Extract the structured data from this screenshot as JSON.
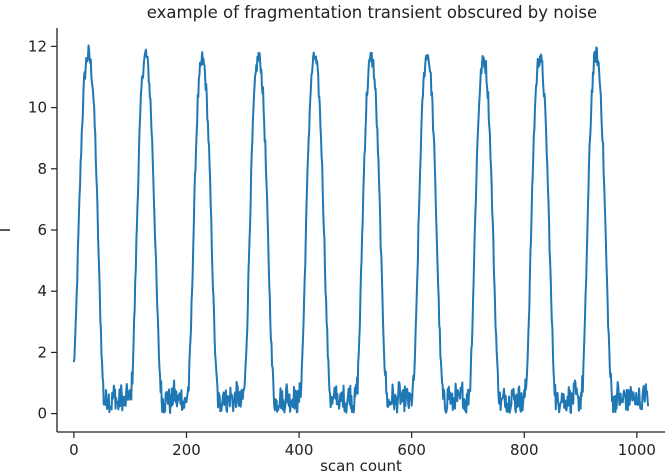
{
  "chart_data": {
    "type": "line",
    "title": "example of fragmentation transient obscured by noise",
    "xlabel": "scan count",
    "ylabel": "I",
    "xlim": [
      -30,
      1050
    ],
    "ylim": [
      -0.6,
      12.6
    ],
    "xticks": [
      0,
      200,
      400,
      600,
      800,
      1000
    ],
    "yticks": [
      0,
      2,
      4,
      6,
      8,
      10,
      12
    ],
    "grid": false,
    "legend": "none",
    "series": [
      {
        "color": "#1f77b4",
        "noise_amplitude": 0.45,
        "points": [
          [
            0,
            1.6
          ],
          [
            3,
            2.6
          ],
          [
            6,
            4.5
          ],
          [
            10,
            7.0
          ],
          [
            14,
            9.2
          ],
          [
            18,
            10.8
          ],
          [
            22,
            11.5
          ],
          [
            26,
            11.8
          ],
          [
            30,
            11.4
          ],
          [
            34,
            10.6
          ],
          [
            38,
            9.0
          ],
          [
            42,
            6.5
          ],
          [
            46,
            3.8
          ],
          [
            50,
            1.6
          ],
          [
            53,
            0.5
          ],
          [
            56,
            0.35
          ],
          [
            60,
            0.6
          ],
          [
            66,
            0.3
          ],
          [
            72,
            0.7
          ],
          [
            78,
            0.25
          ],
          [
            84,
            0.6
          ],
          [
            90,
            0.3
          ],
          [
            96,
            0.7
          ],
          [
            100,
            0.4
          ],
          [
            104,
            1.2
          ],
          [
            108,
            3.5
          ],
          [
            112,
            6.2
          ],
          [
            116,
            8.8
          ],
          [
            120,
            10.6
          ],
          [
            124,
            11.5
          ],
          [
            128,
            11.8
          ],
          [
            132,
            11.3
          ],
          [
            136,
            10.2
          ],
          [
            140,
            8.4
          ],
          [
            144,
            6.0
          ],
          [
            148,
            3.5
          ],
          [
            152,
            1.5
          ],
          [
            156,
            0.5
          ],
          [
            160,
            0.3
          ],
          [
            166,
            0.6
          ],
          [
            172,
            0.3
          ],
          [
            178,
            0.7
          ],
          [
            184,
            0.35
          ],
          [
            190,
            0.6
          ],
          [
            196,
            0.3
          ],
          [
            200,
            0.5
          ],
          [
            204,
            0.9
          ],
          [
            208,
            2.8
          ],
          [
            212,
            5.5
          ],
          [
            216,
            8.2
          ],
          [
            220,
            10.2
          ],
          [
            224,
            11.2
          ],
          [
            228,
            11.6
          ],
          [
            232,
            11.3
          ],
          [
            236,
            10.3
          ],
          [
            240,
            8.6
          ],
          [
            244,
            6.2
          ],
          [
            248,
            3.6
          ],
          [
            252,
            1.5
          ],
          [
            256,
            0.45
          ],
          [
            260,
            0.3
          ],
          [
            266,
            0.7
          ],
          [
            272,
            0.3
          ],
          [
            278,
            0.6
          ],
          [
            284,
            0.35
          ],
          [
            290,
            0.7
          ],
          [
            296,
            0.3
          ],
          [
            300,
            0.5
          ],
          [
            304,
            1.0
          ],
          [
            308,
            3.0
          ],
          [
            312,
            5.8
          ],
          [
            316,
            8.4
          ],
          [
            320,
            10.3
          ],
          [
            324,
            11.3
          ],
          [
            328,
            11.7
          ],
          [
            332,
            11.4
          ],
          [
            336,
            10.4
          ],
          [
            340,
            8.7
          ],
          [
            344,
            6.3
          ],
          [
            348,
            3.7
          ],
          [
            352,
            1.6
          ],
          [
            356,
            0.5
          ],
          [
            360,
            0.3
          ],
          [
            366,
            0.6
          ],
          [
            372,
            0.3
          ],
          [
            378,
            0.7
          ],
          [
            384,
            0.35
          ],
          [
            390,
            0.6
          ],
          [
            396,
            0.3
          ],
          [
            400,
            0.5
          ],
          [
            404,
            1.0
          ],
          [
            408,
            3.0
          ],
          [
            412,
            5.8
          ],
          [
            416,
            8.5
          ],
          [
            420,
            10.4
          ],
          [
            424,
            11.4
          ],
          [
            428,
            11.7
          ],
          [
            432,
            11.3
          ],
          [
            436,
            10.3
          ],
          [
            440,
            8.6
          ],
          [
            444,
            6.2
          ],
          [
            448,
            3.6
          ],
          [
            452,
            1.5
          ],
          [
            456,
            0.45
          ],
          [
            460,
            0.3
          ],
          [
            466,
            0.7
          ],
          [
            472,
            0.3
          ],
          [
            478,
            0.6
          ],
          [
            484,
            0.35
          ],
          [
            490,
            0.7
          ],
          [
            496,
            0.3
          ],
          [
            500,
            0.5
          ],
          [
            504,
            1.0
          ],
          [
            508,
            3.0
          ],
          [
            512,
            5.8
          ],
          [
            516,
            8.4
          ],
          [
            520,
            10.3
          ],
          [
            524,
            11.3
          ],
          [
            528,
            11.7
          ],
          [
            532,
            11.4
          ],
          [
            536,
            10.4
          ],
          [
            540,
            8.7
          ],
          [
            544,
            6.3
          ],
          [
            548,
            3.7
          ],
          [
            552,
            1.6
          ],
          [
            556,
            0.5
          ],
          [
            560,
            0.3
          ],
          [
            566,
            0.6
          ],
          [
            572,
            0.3
          ],
          [
            578,
            0.7
          ],
          [
            584,
            0.35
          ],
          [
            590,
            0.6
          ],
          [
            596,
            0.3
          ],
          [
            600,
            0.5
          ],
          [
            604,
            1.0
          ],
          [
            608,
            3.0
          ],
          [
            612,
            5.9
          ],
          [
            616,
            8.6
          ],
          [
            620,
            10.5
          ],
          [
            624,
            11.5
          ],
          [
            628,
            11.8
          ],
          [
            632,
            11.4
          ],
          [
            636,
            10.4
          ],
          [
            640,
            8.6
          ],
          [
            644,
            6.2
          ],
          [
            648,
            3.6
          ],
          [
            652,
            1.5
          ],
          [
            656,
            0.45
          ],
          [
            660,
            0.3
          ],
          [
            666,
            0.7
          ],
          [
            672,
            0.3
          ],
          [
            678,
            0.6
          ],
          [
            684,
            0.35
          ],
          [
            690,
            0.7
          ],
          [
            696,
            0.3
          ],
          [
            700,
            0.5
          ],
          [
            704,
            1.0
          ],
          [
            708,
            3.0
          ],
          [
            712,
            5.8
          ],
          [
            716,
            8.4
          ],
          [
            720,
            10.3
          ],
          [
            724,
            11.3
          ],
          [
            728,
            11.6
          ],
          [
            732,
            11.3
          ],
          [
            736,
            10.3
          ],
          [
            740,
            8.6
          ],
          [
            744,
            6.2
          ],
          [
            748,
            3.6
          ],
          [
            752,
            1.5
          ],
          [
            756,
            0.45
          ],
          [
            760,
            0.3
          ],
          [
            766,
            0.6
          ],
          [
            772,
            0.3
          ],
          [
            778,
            0.7
          ],
          [
            784,
            0.35
          ],
          [
            790,
            0.6
          ],
          [
            796,
            0.3
          ],
          [
            800,
            0.5
          ],
          [
            804,
            1.0
          ],
          [
            808,
            3.0
          ],
          [
            812,
            5.8
          ],
          [
            816,
            8.5
          ],
          [
            820,
            10.4
          ],
          [
            824,
            11.4
          ],
          [
            828,
            11.7
          ],
          [
            832,
            11.3
          ],
          [
            836,
            10.3
          ],
          [
            840,
            8.6
          ],
          [
            844,
            6.2
          ],
          [
            848,
            3.6
          ],
          [
            852,
            1.5
          ],
          [
            856,
            0.45
          ],
          [
            860,
            0.3
          ],
          [
            866,
            0.7
          ],
          [
            872,
            0.3
          ],
          [
            878,
            0.6
          ],
          [
            884,
            0.35
          ],
          [
            890,
            0.7
          ],
          [
            896,
            0.3
          ],
          [
            900,
            0.5
          ],
          [
            904,
            1.0
          ],
          [
            908,
            3.0
          ],
          [
            912,
            5.9
          ],
          [
            916,
            8.6
          ],
          [
            920,
            10.5
          ],
          [
            924,
            11.5
          ],
          [
            928,
            11.8
          ],
          [
            932,
            11.4
          ],
          [
            936,
            10.4
          ],
          [
            940,
            8.6
          ],
          [
            944,
            6.2
          ],
          [
            948,
            3.6
          ],
          [
            952,
            1.5
          ],
          [
            956,
            0.45
          ],
          [
            960,
            0.3
          ],
          [
            966,
            0.7
          ],
          [
            972,
            0.3
          ],
          [
            978,
            0.6
          ],
          [
            984,
            0.35
          ],
          [
            990,
            0.7
          ],
          [
            996,
            0.3
          ],
          [
            1002,
            0.6
          ],
          [
            1008,
            0.3
          ],
          [
            1014,
            0.7
          ],
          [
            1020,
            0.5
          ]
        ]
      }
    ]
  }
}
